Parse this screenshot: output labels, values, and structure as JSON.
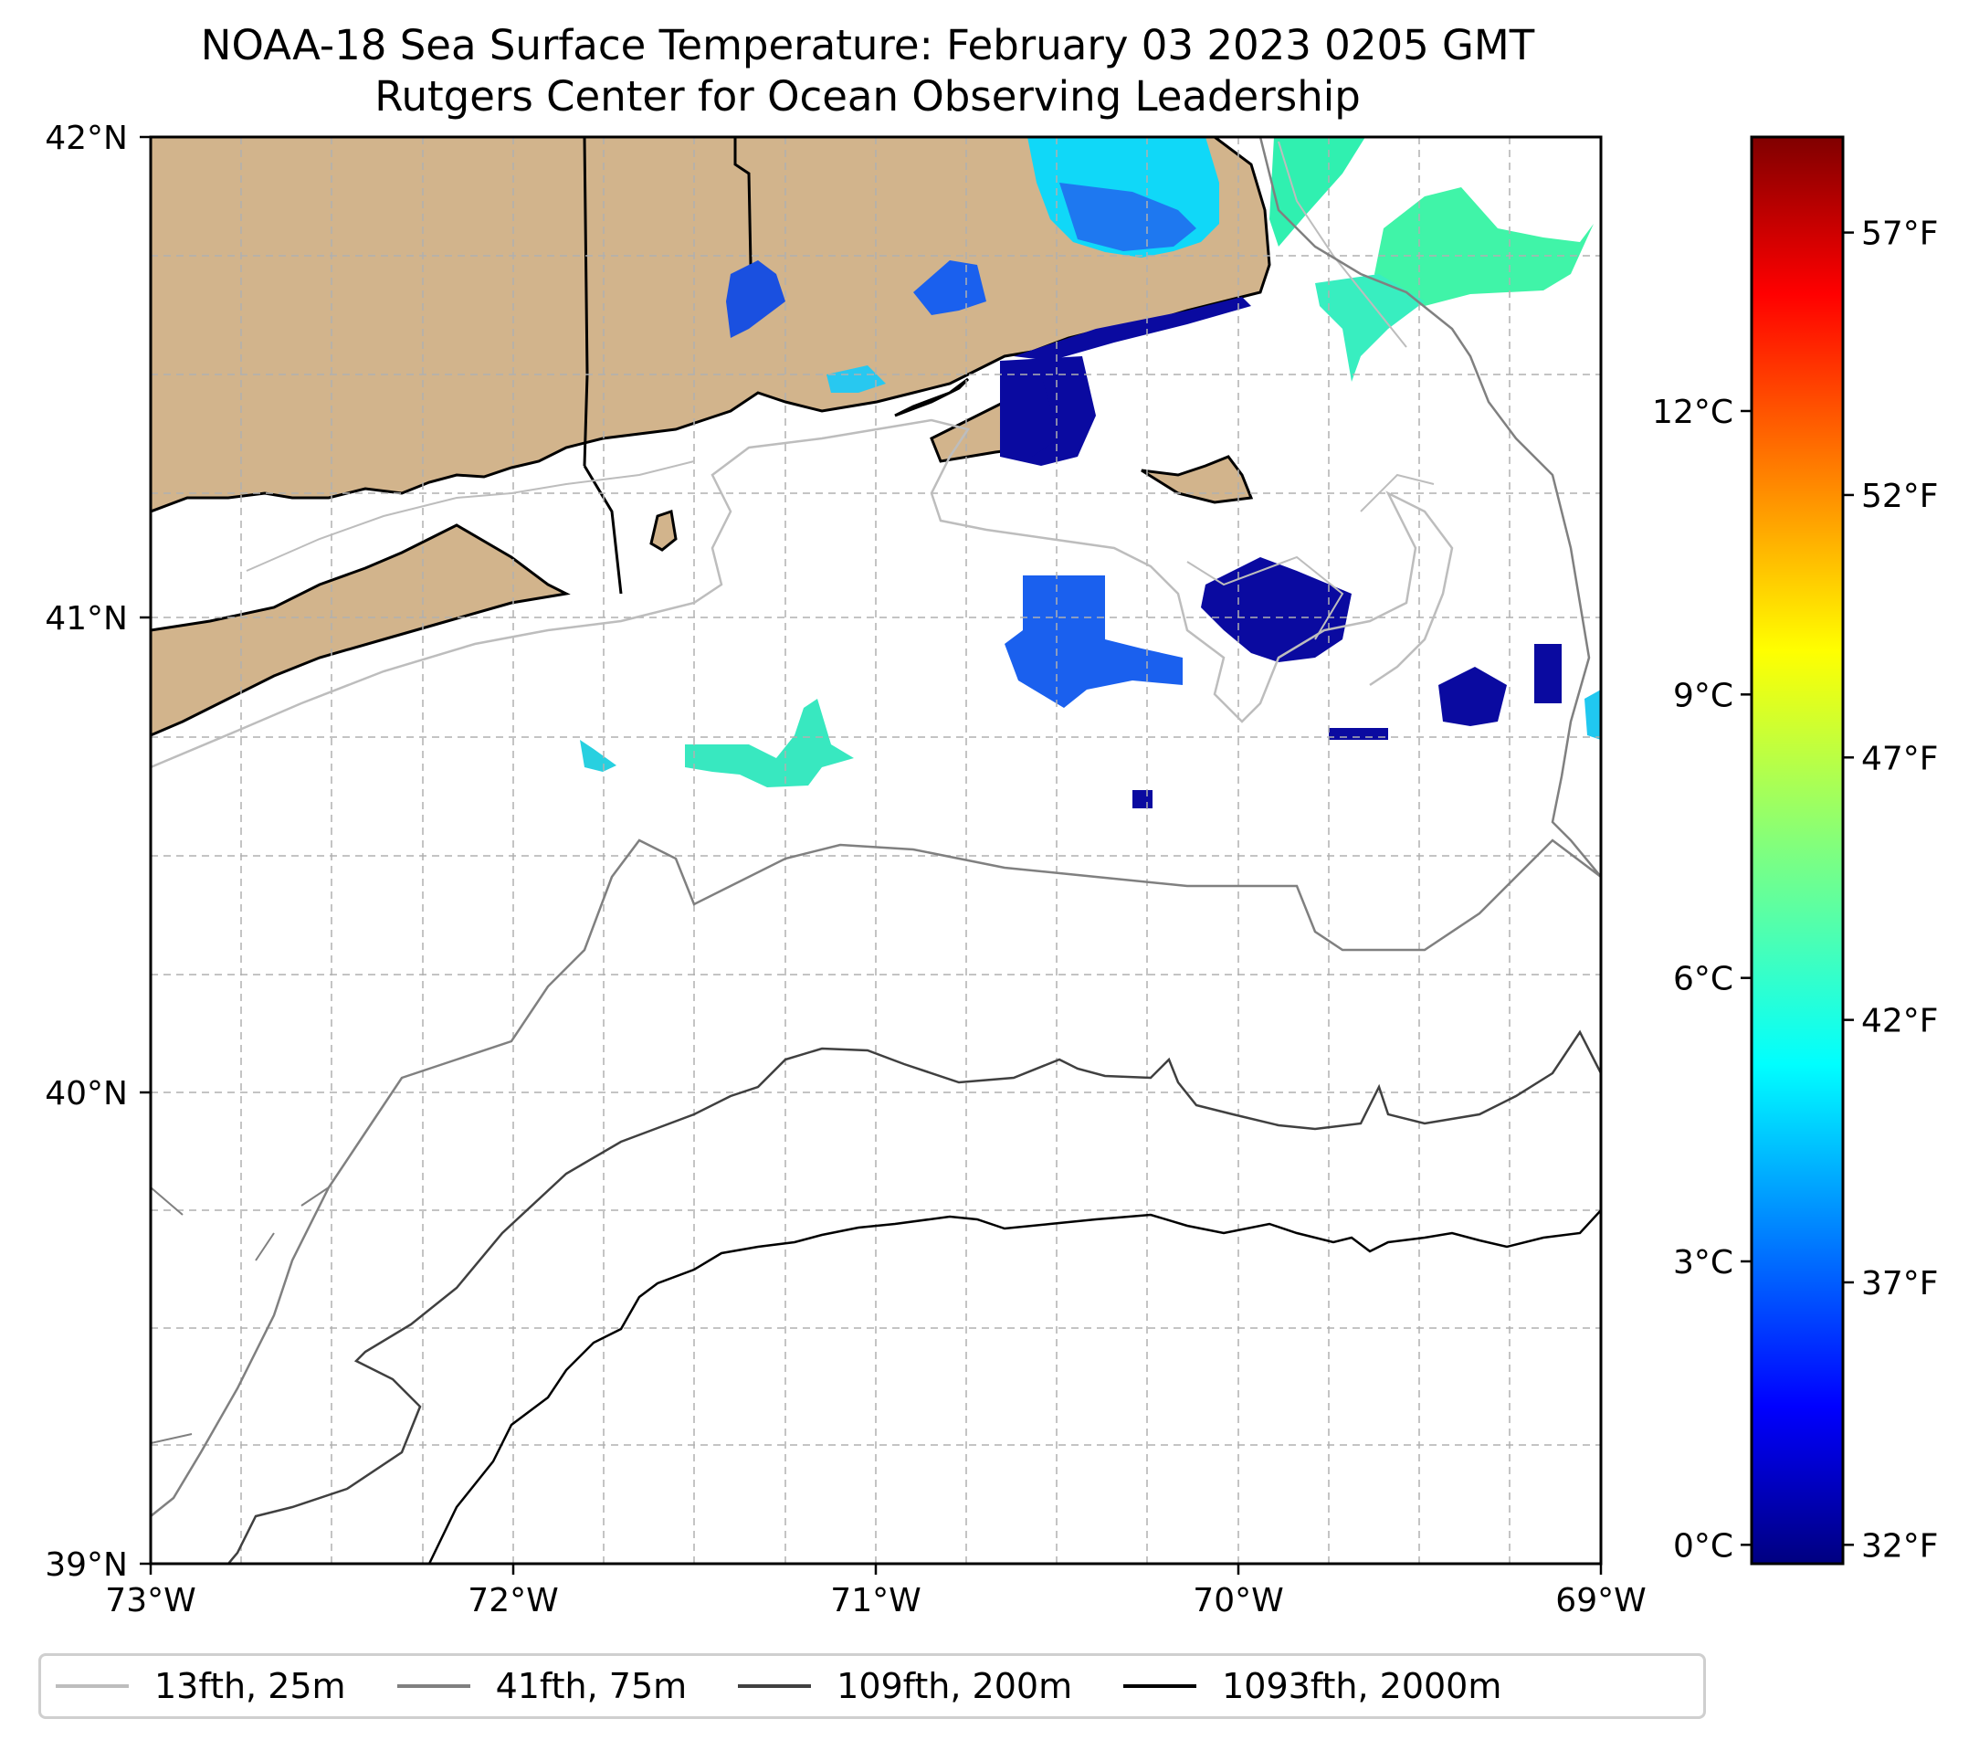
{
  "title": {
    "line1": "NOAA-18 Sea Surface Temperature: February 03 2023 0205 GMT",
    "line2": "Rutgers Center for Ocean Observing Leadership"
  },
  "map": {
    "lon_range": [
      -73,
      -69
    ],
    "lat_range": [
      39,
      42
    ],
    "x_ticks": [
      "73°W",
      "72°W",
      "71°W",
      "70°W",
      "69°W"
    ],
    "y_ticks": [
      "42°N",
      "41°N",
      "40°N",
      "39°N"
    ],
    "land_color": "#D2B48C",
    "grid": true
  },
  "colorbar": {
    "colormap": "jet",
    "celsius_ticks": [
      "12°C",
      "9°C",
      "6°C",
      "3°C",
      "0°C"
    ],
    "celsius_values": [
      12,
      9,
      6,
      3,
      0
    ],
    "fahrenheit_ticks": [
      "57°F",
      "52°F",
      "47°F",
      "42°F",
      "37°F",
      "32°F"
    ],
    "fahrenheit_values": [
      57,
      52,
      47,
      42,
      37,
      32
    ],
    "range_c": [
      -0.2,
      14.9
    ]
  },
  "legend": {
    "items": [
      {
        "label": "13fth, 25m",
        "color": "#bdbdbd"
      },
      {
        "label": "41fth, 75m",
        "color": "#808080"
      },
      {
        "label": "109fth, 200m",
        "color": "#404040"
      },
      {
        "label": "1093fth, 2000m",
        "color": "#000000"
      }
    ]
  }
}
